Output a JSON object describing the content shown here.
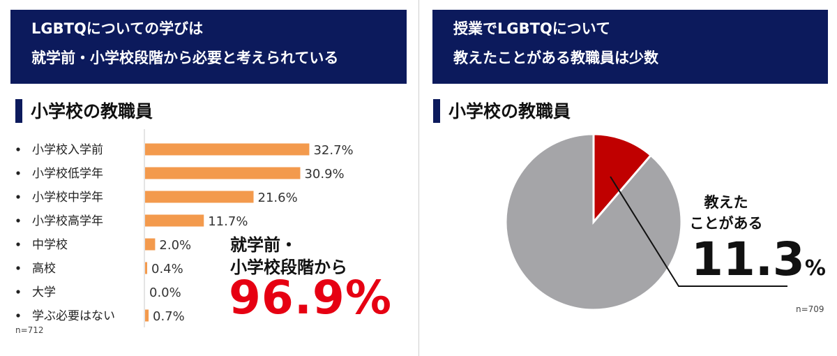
{
  "left": {
    "banner": {
      "line1": "LGBTQについての学びは",
      "line2": "就学前・小学校段階から必要と考えられている"
    },
    "section_title": "小学校の教職員",
    "callout": {
      "line1": "就学前・",
      "line2": "小学校段階から",
      "big": "96.9%"
    },
    "n_label": "n=712"
  },
  "right": {
    "banner": {
      "line1": "授業でLGBTQについて",
      "line2": "教えたことがある教職員は少数"
    },
    "section_title": "小学校の教職員",
    "callout": {
      "line1": "教えた",
      "line2": "ことがある",
      "big_number": "11.3",
      "big_unit": "%"
    },
    "n_label": "n=709"
  },
  "colors": {
    "banner": "#0c1a5c",
    "bar": "#f39a4d",
    "pie_highlight": "#c00000",
    "pie_rest": "#a5a5a8",
    "accent_red": "#e60012"
  },
  "chart_data": [
    {
      "type": "bar",
      "orientation": "horizontal",
      "title": "小学校の教職員",
      "categories": [
        "小学校入学前",
        "小学校低学年",
        "小学校中学年",
        "小学校高学年",
        "中学校",
        "高校",
        "大学",
        "学ぶ必要はない"
      ],
      "values": [
        32.7,
        30.9,
        21.6,
        11.7,
        2.0,
        0.4,
        0.0,
        0.7
      ],
      "value_labels": [
        "32.7%",
        "30.9%",
        "21.6%",
        "11.7%",
        "2.0%",
        "0.4%",
        "0.0%",
        "0.7%"
      ],
      "unit": "%",
      "xlim": [
        0,
        40
      ],
      "grid": false,
      "legend": "none"
    },
    {
      "type": "pie",
      "title": "小学校の教職員",
      "slices": [
        {
          "label": "教えたことがある",
          "value": 11.3
        },
        {
          "value": 88.7
        }
      ],
      "unit": "%",
      "legend": "none"
    }
  ]
}
